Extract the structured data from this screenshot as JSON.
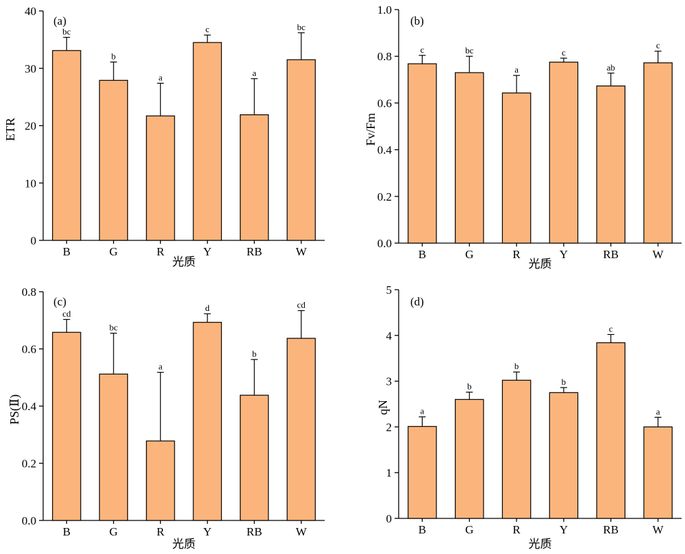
{
  "chart_data": [
    {
      "type": "bar",
      "panel_label": "(a)",
      "ylabel": "ETR",
      "xlabel": "光质",
      "categories": [
        "B",
        "G",
        "R",
        "Y",
        "RB",
        "W"
      ],
      "values": [
        33.1,
        27.9,
        21.7,
        34.5,
        21.9,
        31.5
      ],
      "errors": [
        2.3,
        3.2,
        5.7,
        1.3,
        6.3,
        4.7
      ],
      "significance": [
        "bc",
        "b",
        "a",
        "c",
        "a",
        "bc"
      ],
      "ylim": [
        0,
        40
      ],
      "yticks": [
        0,
        10,
        20,
        30,
        40
      ],
      "ytick_labels": [
        "0",
        "10",
        "20",
        "30",
        "40"
      ],
      "bar_color": "#fbb57c"
    },
    {
      "type": "bar",
      "panel_label": "(b)",
      "ylabel": "Fv/Fm",
      "xlabel": "光质",
      "categories": [
        "B",
        "G",
        "R",
        "Y",
        "RB",
        "W"
      ],
      "values": [
        0.768,
        0.73,
        0.643,
        0.775,
        0.673,
        0.772
      ],
      "errors": [
        0.036,
        0.07,
        0.075,
        0.017,
        0.055,
        0.05
      ],
      "significance": [
        "c",
        "bc",
        "a",
        "c",
        "ab",
        "c"
      ],
      "ylim": [
        0,
        1.0
      ],
      "yticks": [
        0,
        0.2,
        0.4,
        0.6,
        0.8,
        1.0
      ],
      "ytick_labels": [
        "0.0",
        "0.2",
        "0.4",
        "0.6",
        "0.8",
        "1.0"
      ],
      "bar_color": "#fbb57c"
    },
    {
      "type": "bar",
      "panel_label": "(c)",
      "ylabel": "PS(Ⅱ)",
      "xlabel": "光质",
      "categories": [
        "B",
        "G",
        "R",
        "Y",
        "RB",
        "W"
      ],
      "values": [
        0.658,
        0.512,
        0.278,
        0.693,
        0.438,
        0.637
      ],
      "errors": [
        0.045,
        0.143,
        0.24,
        0.03,
        0.125,
        0.097
      ],
      "significance": [
        "cd",
        "bc",
        "a",
        "d",
        "b",
        "cd"
      ],
      "ylim": [
        0,
        0.8
      ],
      "yticks": [
        0,
        0.2,
        0.4,
        0.6,
        0.8
      ],
      "ytick_labels": [
        "0.0",
        "0.2",
        "0.4",
        "0.6",
        "0.8"
      ],
      "bar_color": "#fbb57c"
    },
    {
      "type": "bar",
      "panel_label": "(d)",
      "ylabel": "qN",
      "xlabel": "光质",
      "categories": [
        "B",
        "G",
        "R",
        "Y",
        "RB",
        "W"
      ],
      "values": [
        2.01,
        2.6,
        3.02,
        2.75,
        3.84,
        2.0
      ],
      "errors": [
        0.21,
        0.16,
        0.18,
        0.11,
        0.18,
        0.21
      ],
      "significance": [
        "a",
        "b",
        "b",
        "b",
        "c",
        "a"
      ],
      "ylim": [
        0,
        5
      ],
      "yticks": [
        0,
        1,
        2,
        3,
        4,
        5
      ],
      "ytick_labels": [
        "0",
        "1",
        "2",
        "3",
        "4",
        "5"
      ],
      "bar_color": "#fbb57c"
    }
  ]
}
